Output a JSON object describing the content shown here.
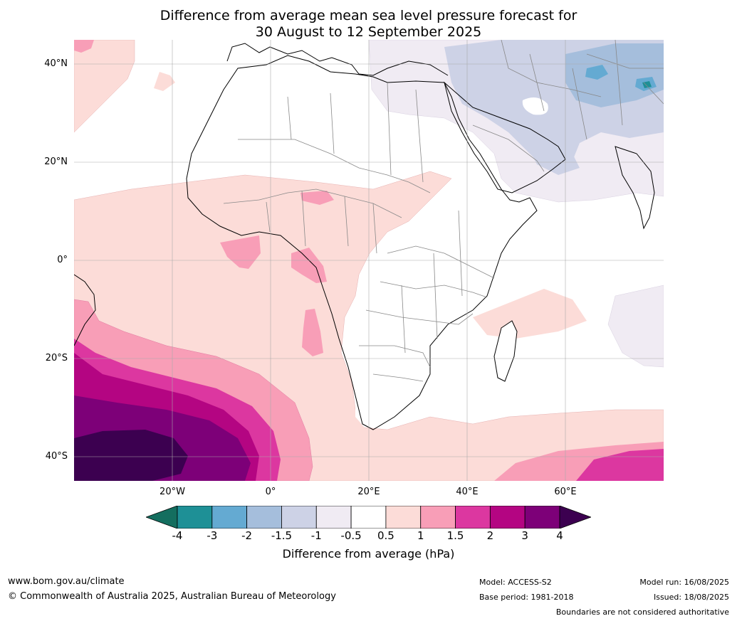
{
  "title_line1": "Difference from average mean sea level pressure forecast for",
  "title_line2": "30 August to 12 September 2025",
  "lat_labels": [
    "40°N",
    "20°N",
    "0°",
    "20°S",
    "40°S"
  ],
  "lon_labels": [
    "20°W",
    "0°",
    "20°E",
    "40°E",
    "60°E"
  ],
  "colorbar": {
    "ticks": [
      "-4",
      "-3",
      "-2",
      "-1.5",
      "-1",
      "-0.5",
      "0.5",
      "1",
      "1.5",
      "2",
      "3",
      "4"
    ],
    "under_color": "#146e5f",
    "over_color": "#3c0050",
    "colors": [
      "#1e9096",
      "#64aad2",
      "#a5bedc",
      "#cdd2e6",
      "#f0ebf3",
      "#ffffff",
      "#fcdcd8",
      "#f89eb7",
      "#dc37a0",
      "#b40582",
      "#7d0078"
    ],
    "label": "Difference from average (hPa)"
  },
  "footer": {
    "website": "www.bom.gov.au/climate",
    "copyright": "© Commonwealth of Australia 2025, Australian Bureau of Meteorology",
    "model": "Model: ACCESS-S2",
    "base_period": "Base period: 1981-2018",
    "model_run": "Model run: 16/08/2025",
    "issued": "Issued: 18/08/2025",
    "disclaimer": "Boundaries are not considered authoritative"
  }
}
